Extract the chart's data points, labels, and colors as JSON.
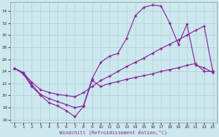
{
  "xlabel": "Windchill (Refroidissement éolien,°C)",
  "bg_color": "#cce8ee",
  "grid_color": "#aaccd4",
  "line_color": "#882299",
  "xlim": [
    -0.5,
    23.5
  ],
  "ylim": [
    15.5,
    35.5
  ],
  "yticks": [
    16,
    18,
    20,
    22,
    24,
    26,
    28,
    30,
    32,
    34
  ],
  "xticks": [
    0,
    1,
    2,
    3,
    4,
    5,
    6,
    7,
    8,
    9,
    10,
    11,
    12,
    13,
    14,
    15,
    16,
    17,
    18,
    19,
    20,
    21,
    22,
    23
  ],
  "line1_x": [
    0,
    1,
    2,
    3,
    4,
    5,
    6,
    7,
    8,
    9,
    10,
    11,
    12,
    13,
    14,
    15,
    16,
    17,
    18,
    19,
    20,
    21,
    22,
    23
  ],
  "line1_y": [
    24.5,
    23.6,
    21.5,
    20.1,
    18.8,
    18.3,
    17.5,
    16.5,
    18.2,
    22.5,
    21.5,
    22.0,
    22.3,
    22.7,
    23.0,
    23.3,
    23.6,
    24.0,
    24.3,
    24.6,
    25.0,
    25.3,
    24.0,
    24.0
  ],
  "line2_x": [
    0,
    1,
    2,
    3,
    4,
    5,
    6,
    7,
    8,
    9,
    10,
    11,
    12,
    13,
    14,
    15,
    16,
    17,
    18,
    19,
    20,
    21,
    22,
    23
  ],
  "line2_y": [
    24.5,
    23.8,
    21.8,
    20.2,
    19.5,
    19.0,
    18.5,
    18.0,
    18.3,
    22.8,
    25.5,
    26.5,
    27.0,
    29.5,
    33.2,
    34.6,
    35.0,
    34.8,
    32.0,
    28.5,
    31.8,
    25.0,
    24.6,
    23.8
  ],
  "line3_x": [
    0,
    1,
    2,
    3,
    4,
    5,
    6,
    7,
    8,
    9,
    10,
    11,
    12,
    13,
    14,
    15,
    16,
    17,
    18,
    19,
    20,
    21,
    22,
    23
  ],
  "line3_y": [
    24.5,
    23.8,
    22.2,
    21.0,
    20.5,
    20.2,
    20.0,
    19.8,
    20.5,
    21.5,
    22.5,
    23.2,
    24.0,
    24.8,
    25.5,
    26.2,
    27.0,
    27.8,
    28.5,
    29.2,
    30.0,
    30.8,
    31.5,
    24.0
  ]
}
